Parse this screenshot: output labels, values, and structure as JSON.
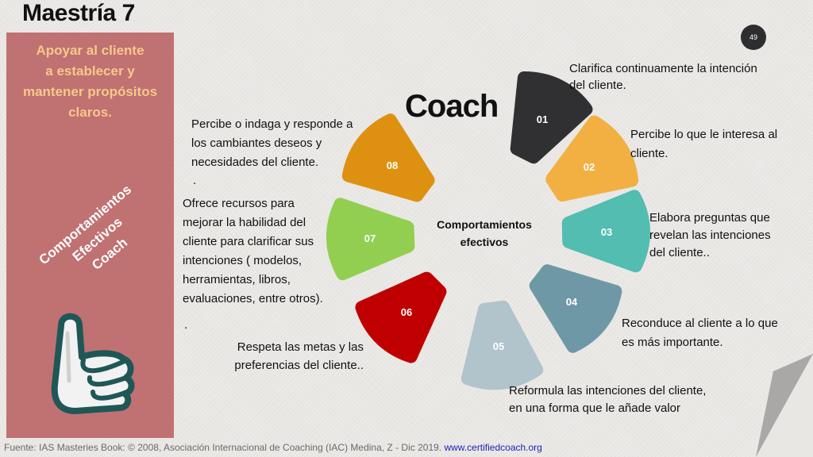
{
  "title": "Maestría 7",
  "panel": {
    "heading_lines": [
      "Apoyar al cliente",
      "a establecer y",
      "mantener propósitos",
      "claros."
    ],
    "rotated_lines": [
      "Comportamientos",
      "Efectivos",
      "Coach"
    ],
    "color": "#c07172",
    "icon": "thumbs-up-icon"
  },
  "diagram": {
    "title": "Coach",
    "center_lines": [
      "Comportamientos",
      "efectivos"
    ],
    "petals": [
      {
        "number": "01",
        "color": "#303033",
        "text_lines": [
          "Clarifica continuamente la intención",
          "del cliente."
        ]
      },
      {
        "number": "02",
        "color": "#f2b043",
        "text_lines": [
          "Percibe lo que le interesa al",
          "cliente."
        ]
      },
      {
        "number": "03",
        "color": "#52bdb0",
        "text_lines": [
          "Elabora preguntas que",
          "revelan las intenciones",
          "del cliente.."
        ]
      },
      {
        "number": "04",
        "color": "#6f98a6",
        "text_lines": [
          "Reconduce al cliente a lo que",
          "es más importante."
        ]
      },
      {
        "number": "05",
        "color": "#b1c3cb",
        "text_lines": [
          "Reformula las intenciones del cliente,",
          "en una forma que le añade valor"
        ]
      },
      {
        "number": "06",
        "color": "#c00000",
        "text_lines": [
          "Respeta las metas y las",
          "preferencias del cliente.."
        ]
      },
      {
        "number": "07",
        "color": "#92cf50",
        "text_lines": [
          "Ofrece recursos para",
          "mejorar la habilidad del",
          "cliente para clarificar sus",
          "intenciones ( modelos,",
          "herramientas, libros,",
          "evaluaciones, entre otros)."
        ]
      },
      {
        "number": "08",
        "color": "#de9110",
        "text_lines": [
          "Percibe o indaga y responde a",
          "los cambiantes deseos y",
          "necesidades del cliente."
        ]
      }
    ]
  },
  "page_number": "49",
  "footer": {
    "source": "Fuente: IAS Masteries Book: © 2008, Asociación Internacional de Coaching (IAC) Medina, Z - Dic 2019.",
    "link": "www.certifiedcoach.org"
  }
}
